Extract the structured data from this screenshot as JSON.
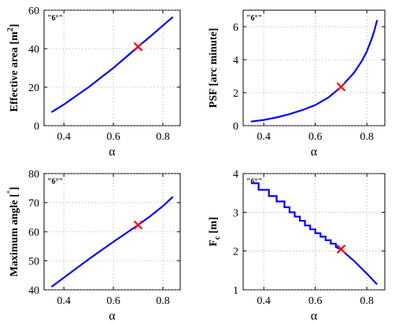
{
  "chart_data": [
    {
      "type": "line",
      "xlabel": "α",
      "ylabel": "Effective area [m²]",
      "ylabel_parts": [
        "Effective area [m",
        "2",
        "]"
      ],
      "annotation": "\"6°\"",
      "xlim": [
        0.32,
        0.87
      ],
      "ylim": [
        0,
        60
      ],
      "xticks": [
        0.4,
        0.6,
        0.8
      ],
      "yticks": [
        0,
        20,
        40,
        60
      ],
      "grid": true,
      "series": [
        {
          "x": [
            0.35,
            0.4,
            0.45,
            0.5,
            0.55,
            0.6,
            0.65,
            0.7,
            0.75,
            0.8,
            0.84
          ],
          "y": [
            7,
            11,
            15.5,
            20,
            25,
            30,
            35.5,
            41,
            46.5,
            52,
            56.5
          ]
        }
      ],
      "marker": {
        "x": 0.7,
        "y": 41
      },
      "color": "#0000ff",
      "marker_color": "#ff0000"
    },
    {
      "type": "line",
      "xlabel": "α",
      "ylabel": "PSF [arc minute]",
      "ylabel_parts": [
        "PSF [arc minute]"
      ],
      "annotation": "\"6°\"",
      "xlim": [
        0.32,
        0.87
      ],
      "ylim": [
        0,
        7
      ],
      "xticks": [
        0.4,
        0.6,
        0.8
      ],
      "yticks": [
        0,
        2,
        4,
        6
      ],
      "grid": true,
      "series": [
        {
          "x": [
            0.35,
            0.4,
            0.45,
            0.5,
            0.55,
            0.6,
            0.65,
            0.7,
            0.75,
            0.78,
            0.8,
            0.82,
            0.83,
            0.84
          ],
          "y": [
            0.25,
            0.35,
            0.5,
            0.7,
            0.95,
            1.25,
            1.7,
            2.35,
            3.2,
            3.9,
            4.5,
            5.3,
            5.8,
            6.4
          ]
        }
      ],
      "marker": {
        "x": 0.7,
        "y": 2.35
      },
      "color": "#0000ff",
      "marker_color": "#ff0000"
    },
    {
      "type": "line",
      "xlabel": "α",
      "ylabel": "Maximum angle [°]",
      "ylabel_parts": [
        "Maximum angle [",
        "°",
        "]"
      ],
      "annotation": "\"6°\"",
      "xlim": [
        0.32,
        0.87
      ],
      "ylim": [
        40,
        80
      ],
      "xticks": [
        0.4,
        0.6,
        0.8
      ],
      "yticks": [
        40,
        50,
        60,
        70,
        80
      ],
      "grid": true,
      "series": [
        {
          "x": [
            0.35,
            0.4,
            0.5,
            0.6,
            0.7,
            0.75,
            0.8,
            0.84
          ],
          "y": [
            41,
            44.2,
            50.5,
            56.5,
            62.3,
            65.4,
            68.8,
            72
          ]
        }
      ],
      "marker": {
        "x": 0.7,
        "y": 62.3
      },
      "color": "#0000ff",
      "marker_color": "#ff0000"
    },
    {
      "type": "line",
      "xlabel": "α",
      "ylabel": "Fc [m]",
      "ylabel_parts": [
        "F",
        "c",
        " [m]"
      ],
      "annotation": "\"6°\"",
      "xlim": [
        0.32,
        0.87
      ],
      "ylim": [
        1,
        4
      ],
      "xticks": [
        0.4,
        0.6,
        0.8
      ],
      "yticks": [
        1,
        2,
        3,
        4
      ],
      "grid": true,
      "series": [
        {
          "x": [
            0.35,
            0.38,
            0.38,
            0.42,
            0.42,
            0.45,
            0.45,
            0.48,
            0.48,
            0.5,
            0.5,
            0.52,
            0.52,
            0.54,
            0.54,
            0.56,
            0.56,
            0.58,
            0.58,
            0.6,
            0.6,
            0.62,
            0.62,
            0.64,
            0.64,
            0.66,
            0.66,
            0.68,
            0.68,
            0.7,
            0.72,
            0.75,
            0.78,
            0.8,
            0.82,
            0.84
          ],
          "y": [
            3.75,
            3.75,
            3.58,
            3.58,
            3.42,
            3.42,
            3.28,
            3.28,
            3.13,
            3.13,
            3.0,
            3.0,
            2.89,
            2.89,
            2.78,
            2.78,
            2.66,
            2.66,
            2.56,
            2.56,
            2.46,
            2.46,
            2.37,
            2.37,
            2.28,
            2.28,
            2.19,
            2.19,
            2.1,
            2.05,
            1.92,
            1.75,
            1.55,
            1.42,
            1.28,
            1.14
          ]
        }
      ],
      "marker": {
        "x": 0.7,
        "y": 2.05
      },
      "color": "#0000ff",
      "marker_color": "#ff0000"
    }
  ]
}
